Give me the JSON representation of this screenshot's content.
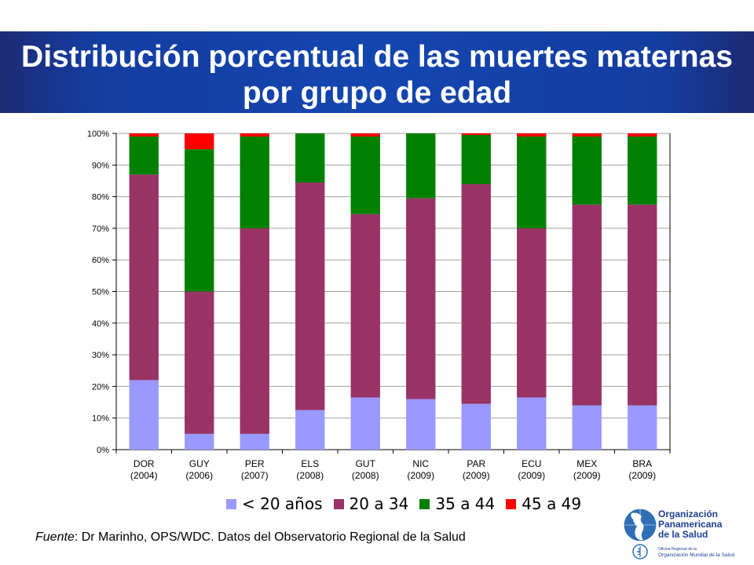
{
  "title": "Distribución porcentual de las muertes maternas por grupo de edad",
  "source": {
    "label": "Fuente",
    "text": ": Dr Marinho, OPS/WDC.  Datos del Observatorio Regional de la Salud"
  },
  "logo": {
    "name1": "Organización",
    "name2": "Panamericana",
    "name3": "de la Salud",
    "sub1": "Oficina Regional de la",
    "sub2": "Organización Mundial de la Salud"
  },
  "chart_data": {
    "type": "bar",
    "stacked": true,
    "title": "",
    "xlabel": "",
    "ylabel": "",
    "ylim": [
      0,
      100
    ],
    "ytick_suffix": "%",
    "yticks": [
      0,
      10,
      20,
      30,
      40,
      50,
      60,
      70,
      80,
      90,
      100
    ],
    "grid": true,
    "legend_position": "bottom",
    "categories": [
      "DOR",
      "GUY",
      "PER",
      "ELS",
      "GUT",
      "NIC",
      "PAR",
      "ECU",
      "MEX",
      "BRA"
    ],
    "category_years": [
      "(2004)",
      "(2006)",
      "(2007)",
      "(2008)",
      "(2008)",
      "(2009)",
      "(2009)",
      "(2009)",
      "(2009)",
      "(2009)"
    ],
    "series": [
      {
        "name": "< 20 años",
        "color": "#9999ff",
        "values": [
          22,
          5,
          5,
          12.5,
          16.5,
          16,
          14.5,
          16.5,
          14,
          14
        ]
      },
      {
        "name": "20 a 34",
        "color": "#993366",
        "values": [
          65,
          45,
          65,
          72,
          58,
          63.5,
          69.5,
          53.5,
          63.5,
          63.5
        ]
      },
      {
        "name": "35 a 44",
        "color": "#008000",
        "values": [
          12,
          45,
          29,
          15.5,
          24.5,
          20.5,
          15.5,
          29,
          21.5,
          21.5
        ]
      },
      {
        "name": "45 a 49",
        "color": "#ff0000",
        "values": [
          1,
          5,
          1,
          0,
          1,
          0,
          0.5,
          1,
          1,
          1
        ]
      }
    ]
  }
}
